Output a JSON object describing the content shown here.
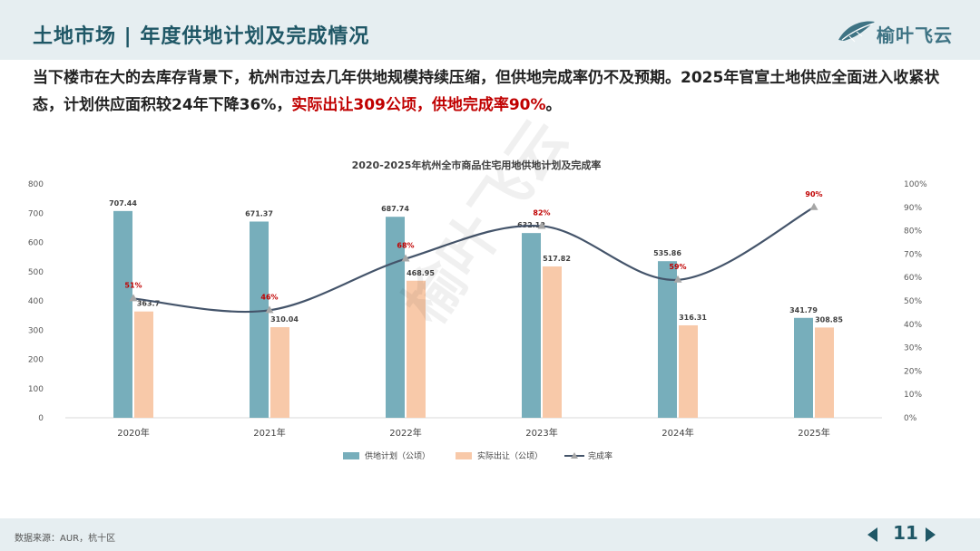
{
  "header": {
    "title": "土地市场 | 年度供地计划及完成情况",
    "logo_text": "榆叶飞云"
  },
  "summary": {
    "part1": "当下楼市在大的去库存背景下，杭州市过去几年供地规模持续压缩，但供地完成率仍不及预期。2025年官宣土地供应全面进入收紧状态，计划供应面积较24年下降36%，",
    "highlight": "实际出让309公顷，供地完成率90%",
    "part2": "。"
  },
  "watermark": "榆叶飞云",
  "footer": {
    "source": "数据来源：AUR，杭十区",
    "page_number": "11"
  },
  "colors": {
    "plan_bar": "#77aebb",
    "actual_bar": "#f8c9a9",
    "rate_line": "#44546a",
    "rate_marker": "#a6a6a6",
    "rate_label": "#c00000",
    "accent_dark": "#1f5766",
    "header_bg": "#e6eef1"
  },
  "chart_data": {
    "type": "bar+line",
    "title": "2020-2025年杭州全市商品住宅用地供地计划及完成率",
    "categories": [
      "2020年",
      "2021年",
      "2022年",
      "2023年",
      "2024年",
      "2025年"
    ],
    "series": [
      {
        "name": "供地计划（公顷）",
        "type": "bar",
        "axis": "left",
        "values": [
          707.44,
          671.37,
          687.74,
          632.12,
          535.86,
          341.79
        ],
        "labels": [
          "707.44",
          "671.37",
          "687.74",
          "632.12",
          "535.86",
          "341.79"
        ]
      },
      {
        "name": "实际出让（公顷）",
        "type": "bar",
        "axis": "left",
        "values": [
          363.7,
          310.04,
          468.95,
          517.82,
          316.31,
          308.85
        ],
        "labels": [
          "363.7",
          "310.04",
          "468.95",
          "517.82",
          "316.31",
          "308.85"
        ]
      },
      {
        "name": "完成率",
        "type": "line",
        "axis": "right",
        "values": [
          51,
          46,
          68,
          82,
          59,
          90
        ],
        "labels": [
          "51%",
          "46%",
          "68%",
          "82%",
          "59%",
          "90%"
        ]
      }
    ],
    "ylim_left": [
      0,
      800
    ],
    "yticks_left": [
      "0",
      "100",
      "200",
      "300",
      "400",
      "500",
      "600",
      "700",
      "800"
    ],
    "ylim_right": [
      0,
      100
    ],
    "yticks_right": [
      "0%",
      "10%",
      "20%",
      "30%",
      "40%",
      "50%",
      "60%",
      "70%",
      "80%",
      "90%",
      "100%"
    ],
    "legend_position": "bottom",
    "grid": false
  }
}
